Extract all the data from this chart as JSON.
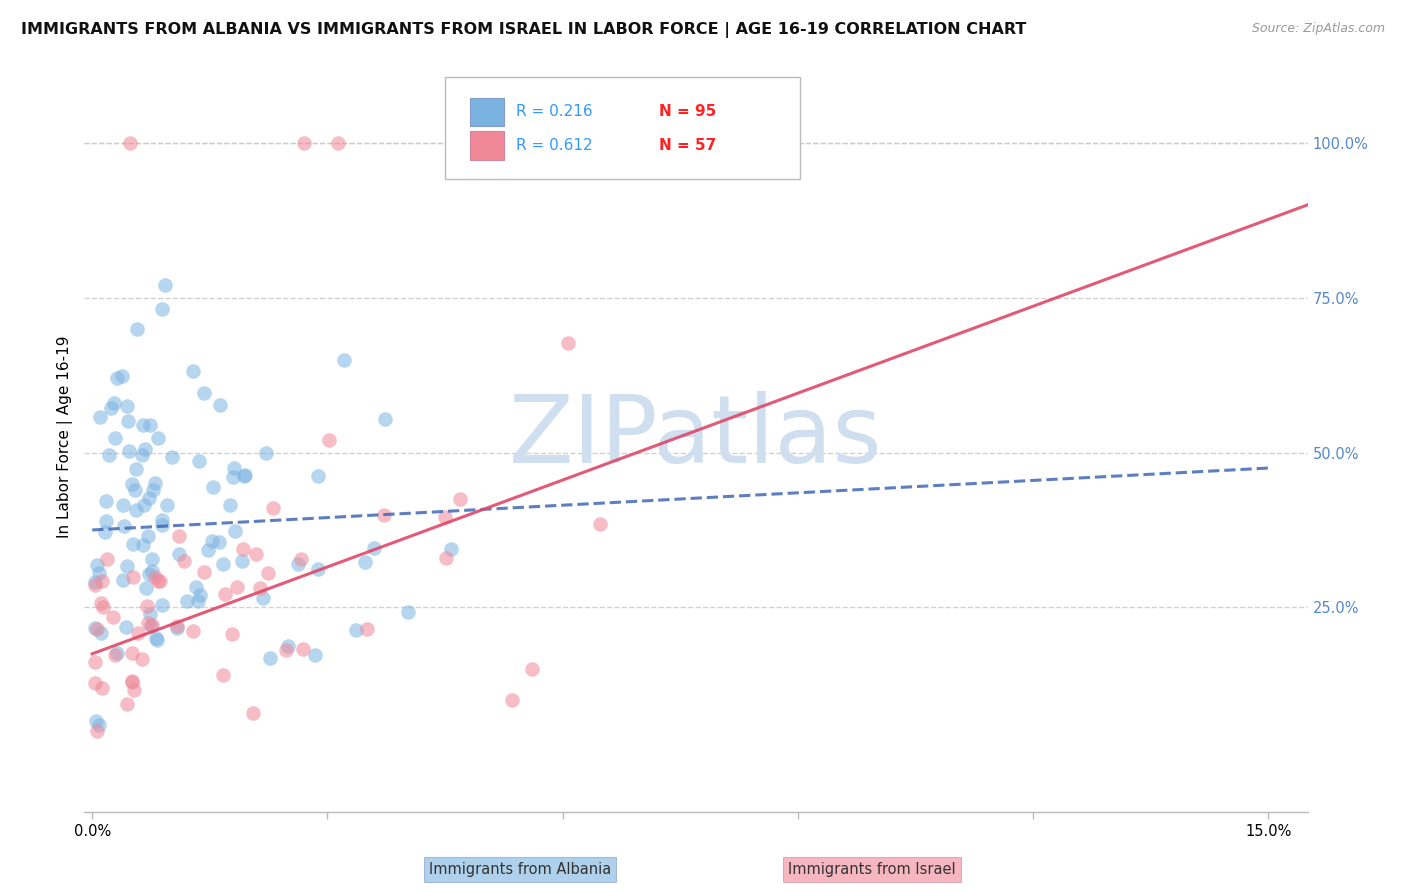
{
  "title": "IMMIGRANTS FROM ALBANIA VS IMMIGRANTS FROM ISRAEL IN LABOR FORCE | AGE 16-19 CORRELATION CHART",
  "source": "Source: ZipAtlas.com",
  "ylabel": "In Labor Force | Age 16-19",
  "xlim": [
    -0.001,
    0.155
  ],
  "ylim": [
    -0.08,
    1.13
  ],
  "ytick_labels_right": [
    "100.0%",
    "75.0%",
    "50.0%",
    "25.0%"
  ],
  "ytick_vals_right": [
    1.0,
    0.75,
    0.5,
    0.25
  ],
  "watermark": "ZIPatlas",
  "legend_r_albania": "R = 0.216",
  "legend_n_albania": "N = 95",
  "legend_r_israel": "R = 0.612",
  "legend_n_israel": "N = 57",
  "albania_color": "#7ab3e0",
  "israel_color": "#f08898",
  "albania_line_color": "#4169b8",
  "israel_line_color": "#e04868",
  "grid_color": "#cccccc",
  "background_color": "#ffffff",
  "title_fontsize": 11.5,
  "axis_label_fontsize": 11,
  "tick_fontsize": 10.5,
  "watermark_color": "#d0dff0",
  "watermark_fontsize": 68,
  "right_tick_color": "#5588cc",
  "legend_blue_color": "#3399ff",
  "legend_red_color": "#ff2222"
}
